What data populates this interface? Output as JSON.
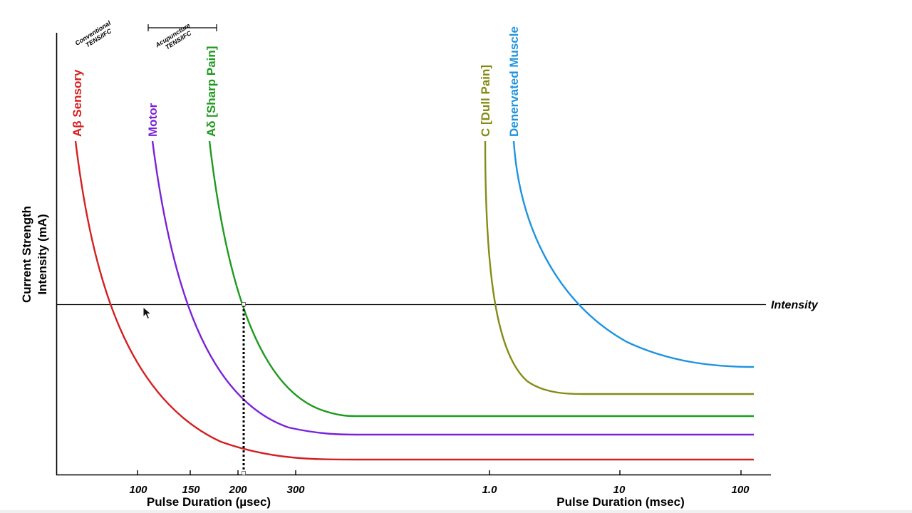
{
  "chart_data": {
    "type": "line",
    "title": "",
    "ylabel_line1": "Current Strength",
    "ylabel_line2": "Intensity (mA)",
    "xlabel_usec": "Pulse Duration (µsec)",
    "xlabel_msec": "Pulse Duration (msec)",
    "x_ticks_usec": [
      "100",
      "150",
      "200",
      "300"
    ],
    "x_ticks_msec": [
      "1.0",
      "10",
      "100"
    ],
    "intensity_label": "Intensity",
    "marked_pulse_label": "200",
    "ranges": [
      {
        "label_line1": "Conventional",
        "label_line2": "TENS/IFC"
      },
      {
        "label_line1": "Acupuncture",
        "label_line2": "TENS/IFC"
      }
    ],
    "series": [
      {
        "name": "Aβ Sensory",
        "color": "#d42020"
      },
      {
        "name": "Motor",
        "color": "#7b22d8"
      },
      {
        "name": "Aδ [Sharp Pain]",
        "color": "#1f9a1f"
      },
      {
        "name": "C [Dull Pain]",
        "color": "#848c16"
      },
      {
        "name": "Denervated Muscle",
        "color": "#1e93e0"
      }
    ]
  }
}
